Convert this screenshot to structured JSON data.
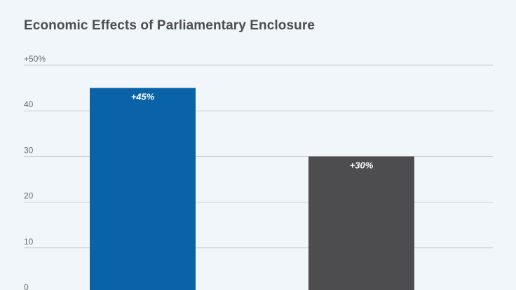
{
  "title": "Economic Effects of Parliamentary Enclosure",
  "chart_data": {
    "type": "bar",
    "title": "Economic Effects of Parliamentary Enclosure",
    "categories": [
      "",
      ""
    ],
    "values": [
      45,
      30
    ],
    "data_labels": [
      "+45%",
      "+30%"
    ],
    "bar_colors": [
      "#0a63a6",
      "#4d4d4f"
    ],
    "xlabel": "",
    "ylabel": "",
    "ylim": [
      0,
      50
    ],
    "yticks": [
      0,
      10,
      20,
      30,
      40,
      50
    ],
    "ytick_labels": [
      "0",
      "10",
      "20",
      "30",
      "40",
      "+50%"
    ],
    "grid": true,
    "legend": "none"
  }
}
